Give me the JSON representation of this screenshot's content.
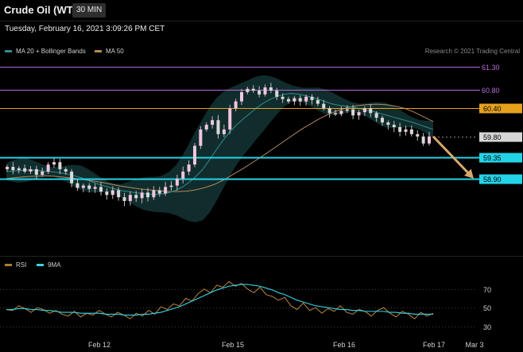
{
  "header": {
    "title": "Crude Oil (WTI)",
    "interval": "30 MIN",
    "datetime": "Tuesday, February 16, 2021 3:09:26 PM CET"
  },
  "legend": {
    "ma20": "MA 20 + Bollinger Bands",
    "ma50": "MA 50",
    "credit": "Research © 2021 Trading Central",
    "rsi": "RSI",
    "rsi_ma": "9MA"
  },
  "colors": {
    "background": "#000000",
    "bull": "#f2c6e0",
    "bear": "#d9d9d9",
    "ma20": "#2f8f8f",
    "bands": "#133131",
    "ma50": "#b5895a",
    "purple_level": "#b56bd8",
    "orange_level": "#e6a21e",
    "cyan_level": "#23d4e8",
    "grey_level": "#d6d6d6",
    "arrow": "#d8a86a",
    "rsi": "#b07a3a",
    "rsi_ma": "#2fd6e6"
  },
  "chart_data": [
    {
      "type": "candlestick",
      "title": "Crude Oil (WTI)",
      "ylim": [
        57.28,
        61.53
      ],
      "x_ticks": [
        "Feb 12",
        "Feb 15",
        "Feb 16",
        "Feb 17",
        "Mar 3"
      ],
      "levels": [
        {
          "value": 61.3,
          "label": "61.30",
          "kind": "resistance",
          "color": "#b56bd8"
        },
        {
          "value": 60.8,
          "label": "60.80",
          "kind": "resistance",
          "color": "#b56bd8"
        },
        {
          "value": 60.4,
          "label": "60.40",
          "kind": "pivot",
          "color": "#e6a21e"
        },
        {
          "value": 59.8,
          "label": "59.80",
          "kind": "last",
          "color": "#d6d6d6"
        },
        {
          "value": 59.35,
          "label": "59.35",
          "kind": "support",
          "color": "#23d4e8"
        },
        {
          "value": 58.9,
          "label": "58.90",
          "kind": "support",
          "color": "#23d4e8"
        }
      ],
      "price_path": [
        59.15,
        59.08,
        59.12,
        59.05,
        59.1,
        58.98,
        59.05,
        59.2,
        59.25,
        59.1,
        59.05,
        58.8,
        58.7,
        58.75,
        58.68,
        58.72,
        58.62,
        58.55,
        58.65,
        58.5,
        58.42,
        58.55,
        58.48,
        58.6,
        58.5,
        58.65,
        58.58,
        58.72,
        58.75,
        58.9,
        59.05,
        59.2,
        59.6,
        59.95,
        60.05,
        60.15,
        59.85,
        59.95,
        60.4,
        60.55,
        60.75,
        60.82,
        60.78,
        60.7,
        60.85,
        60.78,
        60.65,
        60.6,
        60.55,
        60.62,
        60.55,
        60.65,
        60.58,
        60.5,
        60.4,
        60.3,
        60.28,
        60.35,
        60.38,
        60.25,
        60.32,
        60.4,
        60.3,
        60.2,
        60.1,
        60.05,
        60.0,
        59.9,
        59.95,
        59.85,
        59.8,
        59.65,
        59.8
      ],
      "ma20": [
        59.05,
        59.06,
        59.07,
        59.08,
        59.08,
        59.07,
        59.05,
        59.04,
        59.02,
        59.0,
        58.96,
        58.92,
        58.86,
        58.81,
        58.76,
        58.72,
        58.68,
        58.64,
        58.62,
        58.6,
        58.58,
        58.57,
        58.56,
        58.57,
        58.6,
        58.65,
        58.72,
        58.82,
        58.95,
        59.1,
        59.3,
        59.52,
        59.72,
        59.9,
        60.05,
        60.18,
        60.3,
        60.42,
        60.52,
        60.6,
        60.66,
        60.7,
        60.72,
        60.71,
        60.68,
        60.64,
        60.6,
        60.55,
        60.5,
        60.47,
        60.45,
        60.43,
        60.4,
        60.37,
        60.34,
        60.3,
        60.26,
        60.22,
        60.18,
        60.14,
        60.1,
        60.05,
        60.0,
        59.95
      ],
      "ma50": [
        58.9,
        58.92,
        58.94,
        58.95,
        58.96,
        58.95,
        58.93,
        58.91,
        58.88,
        58.85,
        58.82,
        58.78,
        58.74,
        58.71,
        58.68,
        58.66,
        58.64,
        58.62,
        58.62,
        58.63,
        58.66,
        58.71,
        58.78,
        58.88,
        59.0,
        59.12,
        59.25,
        59.38,
        59.52,
        59.66,
        59.8,
        59.94,
        60.06,
        60.18,
        60.28,
        60.36,
        60.42,
        60.46,
        60.48,
        60.49,
        60.48,
        60.45,
        60.4,
        60.32,
        60.22,
        60.12
      ],
      "target": {
        "from_value": 59.8,
        "to_value": 58.9
      }
    },
    {
      "type": "line",
      "title": "RSI",
      "ylim": [
        22,
        86
      ],
      "y_ticks": [
        30,
        50,
        70
      ],
      "series": [
        {
          "name": "RSI",
          "values": [
            48,
            47,
            52,
            49,
            45,
            50,
            48,
            44,
            47,
            43,
            41,
            46,
            40,
            44,
            42,
            47,
            43,
            40,
            45,
            42,
            38,
            44,
            41,
            47,
            43,
            51,
            48,
            54,
            52,
            60,
            57,
            65,
            70,
            66,
            74,
            72,
            78,
            73,
            76,
            70,
            66,
            72,
            64,
            62,
            58,
            61,
            52,
            48,
            55,
            47,
            50,
            44,
            49,
            46,
            52,
            45,
            43,
            48,
            46,
            41,
            47,
            50,
            44,
            40,
            46,
            43,
            38,
            45,
            41,
            44
          ]
        },
        {
          "name": "9MA",
          "values": [
            48,
            48,
            49,
            49,
            48,
            48,
            47,
            47,
            46,
            45,
            45,
            45,
            44,
            44,
            44,
            44,
            43,
            43,
            43,
            42,
            42,
            42,
            43,
            43,
            44,
            45,
            47,
            49,
            51,
            54,
            57,
            60,
            63,
            66,
            69,
            71,
            73,
            74,
            75,
            75,
            74,
            73,
            71,
            69,
            66,
            64,
            61,
            58,
            56,
            54,
            52,
            51,
            50,
            49,
            48,
            48,
            47,
            47,
            46,
            46,
            46,
            46,
            45,
            45,
            44,
            44,
            43,
            43,
            43,
            43
          ]
        }
      ]
    }
  ]
}
